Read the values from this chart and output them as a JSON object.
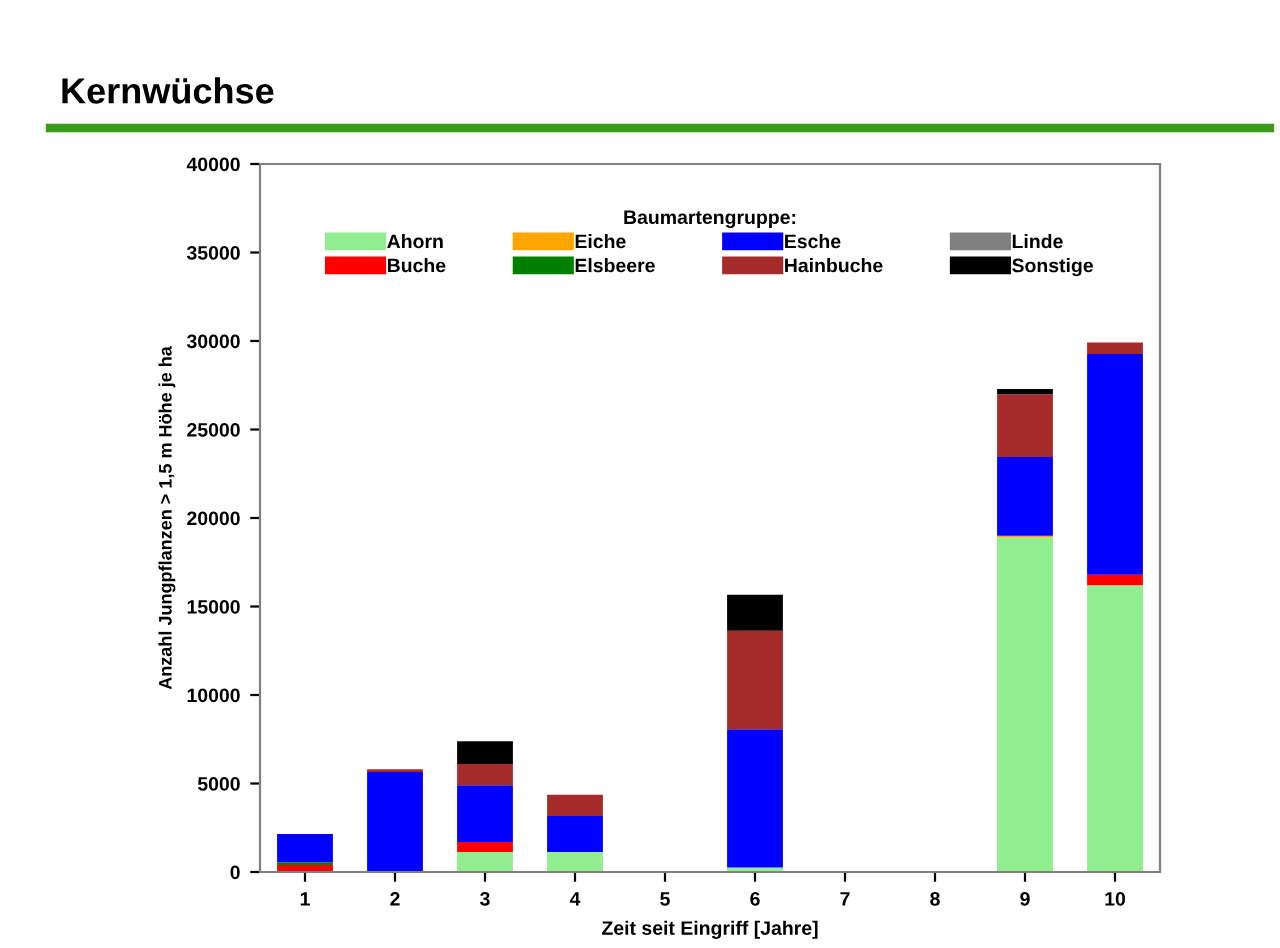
{
  "chart_data": {
    "type": "bar",
    "title": "Kernwüchse",
    "xlabel": "Zeit seit Eingriff [Jahre]",
    "ylabel": "Anzahl Jungpflanzen > 1,5 m Höhe je ha",
    "legend_title": "Baumartengruppe:",
    "legend": "top",
    "stacked": true,
    "grid": false,
    "categories": [
      "1",
      "2",
      "3",
      "4",
      "5",
      "6",
      "7",
      "8",
      "9",
      "10"
    ],
    "ylim": [
      0,
      40000
    ],
    "yticks": [
      0,
      5000,
      10000,
      15000,
      20000,
      25000,
      30000,
      35000,
      40000
    ],
    "series": [
      {
        "name": "Ahorn",
        "color": "#90ee90",
        "values": [
          0,
          0,
          1130,
          1130,
          0,
          260,
          0,
          0,
          18900,
          16200
        ]
      },
      {
        "name": "Buche",
        "color": "#ff0000",
        "values": [
          400,
          0,
          570,
          0,
          0,
          0,
          0,
          0,
          0,
          600
        ]
      },
      {
        "name": "Eiche",
        "color": "#ffa500",
        "values": [
          0,
          0,
          0,
          0,
          0,
          0,
          0,
          0,
          100,
          0
        ]
      },
      {
        "name": "Elsbeere",
        "color": "#008000",
        "values": [
          150,
          0,
          0,
          0,
          0,
          0,
          0,
          0,
          0,
          0
        ]
      },
      {
        "name": "Esche",
        "color": "#0000ff",
        "values": [
          1600,
          5650,
          3200,
          2030,
          0,
          7800,
          0,
          0,
          4450,
          12470
        ]
      },
      {
        "name": "Hainbuche",
        "color": "#a52a2a",
        "values": [
          0,
          150,
          1200,
          1200,
          0,
          5570,
          0,
          0,
          3540,
          640
        ]
      },
      {
        "name": "Linde",
        "color": "#808080",
        "values": [
          0,
          0,
          0,
          0,
          0,
          0,
          0,
          0,
          0,
          0
        ]
      },
      {
        "name": "Sonstige",
        "color": "#000000",
        "values": [
          0,
          0,
          1280,
          0,
          0,
          2030,
          0,
          0,
          300,
          0
        ]
      }
    ]
  }
}
